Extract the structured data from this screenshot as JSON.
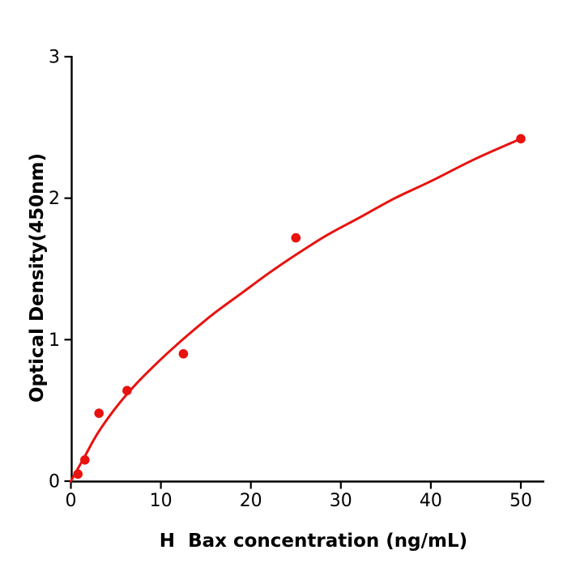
{
  "figure": {
    "background": "#ffffff",
    "axis_color": "#000000",
    "accent_color": "#e8120f"
  },
  "chart_data": {
    "type": "scatter",
    "title": "",
    "xlabel": "H  Bax concentration (ng/mL)",
    "ylabel": "Optical Density(450nm)",
    "xlim": [
      0,
      52.6
    ],
    "ylim": [
      0,
      3
    ],
    "xticks": [
      0,
      10,
      20,
      30,
      40,
      50
    ],
    "yticks": [
      0,
      1,
      2,
      3
    ],
    "grid": false,
    "legend": false,
    "series": [
      {
        "name": "standard-data-points",
        "type": "scatter",
        "marker": "circle",
        "color": "#e8120f",
        "x": [
          0.78,
          1.56,
          3.125,
          6.25,
          12.5,
          25,
          50
        ],
        "y": [
          0.05,
          0.15,
          0.48,
          0.64,
          0.9,
          1.72,
          2.42
        ]
      },
      {
        "name": "fitted-curve",
        "type": "line",
        "color": "#e8120f",
        "x": [
          0,
          1.5,
          3,
          5,
          7,
          9,
          11,
          13.5,
          16,
          19,
          22,
          25,
          28.5,
          32,
          36,
          40,
          45,
          50
        ],
        "y": [
          0,
          0.17,
          0.34,
          0.52,
          0.67,
          0.8,
          0.92,
          1.06,
          1.19,
          1.33,
          1.47,
          1.6,
          1.74,
          1.86,
          2.0,
          2.12,
          2.28,
          2.42
        ]
      }
    ]
  }
}
